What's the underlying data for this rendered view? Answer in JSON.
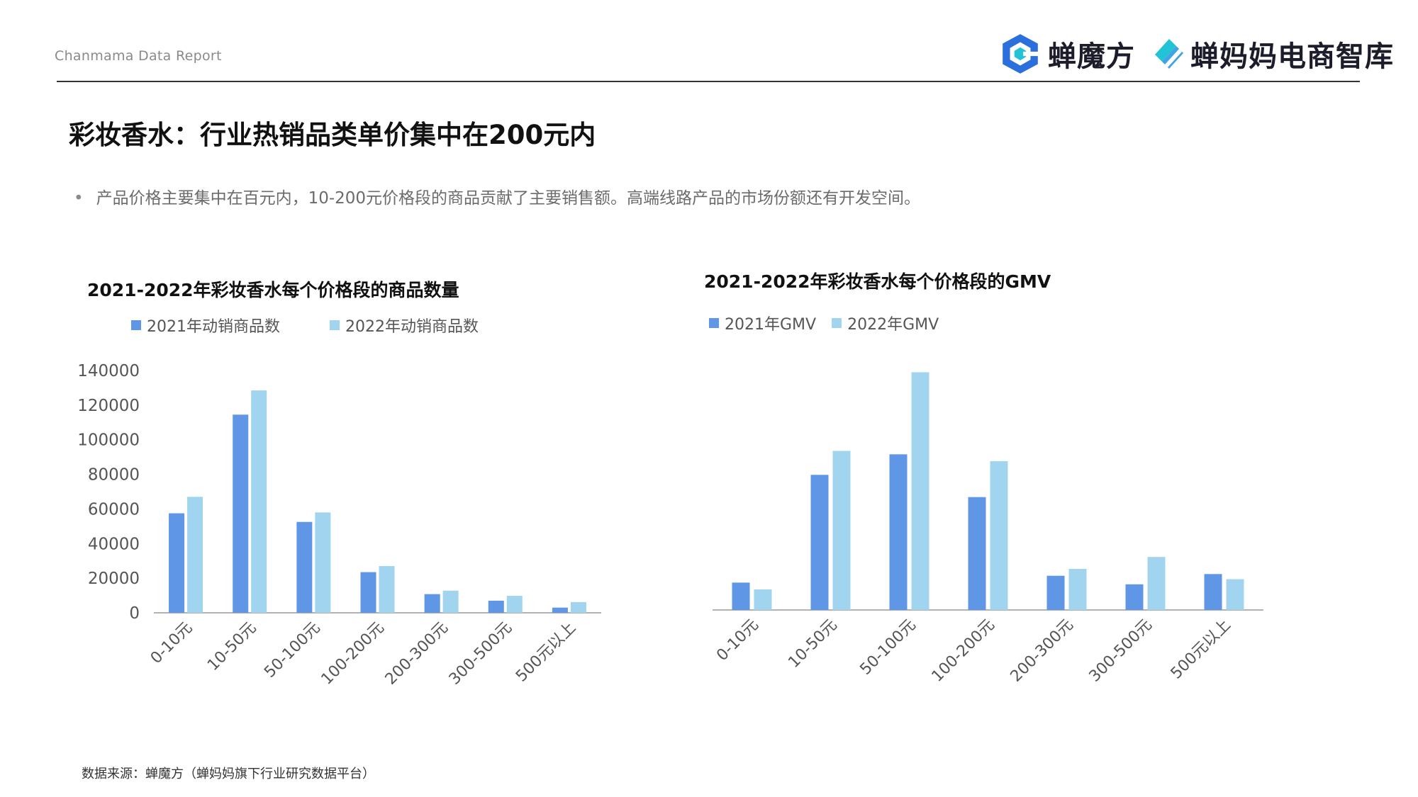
{
  "header": {
    "report_label": "Chanmama Data Report",
    "brand1": "蝉魔方",
    "brand2": "蝉妈妈电商智库"
  },
  "page": {
    "title": "彩妆香水：行业热销品类单价集中在200元内",
    "bullet": "产品价格主要集中在百元内，10-200元价格段的商品贡献了主要销售额。高端线路产品的市场份额还有开发空间。",
    "source": "数据来源：蝉魔方（蝉妈妈旗下行业研究数据平台）"
  },
  "colors": {
    "series_2021": "#6096e6",
    "series_2022": "#a0d4ef",
    "axis": "#999999",
    "brand_blue": "#2a6fdb",
    "brand_cyan": "#22c3d6"
  },
  "chart_data": [
    {
      "type": "bar",
      "title": "2021-2022年彩妆香水每个价格段的商品数量",
      "categories": [
        "0-10元",
        "10-50元",
        "50-100元",
        "100-200元",
        "200-300元",
        "300-500元",
        "500元以上"
      ],
      "series": [
        {
          "name": "2021年动销商品数",
          "values": [
            57500,
            114500,
            52500,
            23500,
            10800,
            7000,
            3000
          ]
        },
        {
          "name": "2022年动销商品数",
          "values": [
            67000,
            128500,
            58000,
            27000,
            12800,
            9800,
            6200
          ]
        }
      ],
      "ylim": [
        0,
        140000
      ],
      "yticks": [
        "140000",
        "120000",
        "100000",
        "80000",
        "60000",
        "40000",
        "20000",
        "0"
      ],
      "legend": "top-left",
      "grid": false
    },
    {
      "type": "bar",
      "title": "2021-2022年彩妆香水每个价格段的GMV",
      "categories": [
        "0-10元",
        "10-50元",
        "50-100元",
        "100-200元",
        "200-300元",
        "300-500元",
        "500元以上"
      ],
      "series": [
        {
          "name": "2021年GMV",
          "values": [
            16,
            79,
            91,
            66,
            20,
            15,
            21
          ]
        },
        {
          "name": "2022年GMV",
          "values": [
            12,
            93,
            139,
            87,
            24,
            31,
            18
          ]
        }
      ],
      "ylim": [
        0,
        140
      ],
      "yticks": [],
      "legend": "top-left",
      "grid": false
    }
  ]
}
